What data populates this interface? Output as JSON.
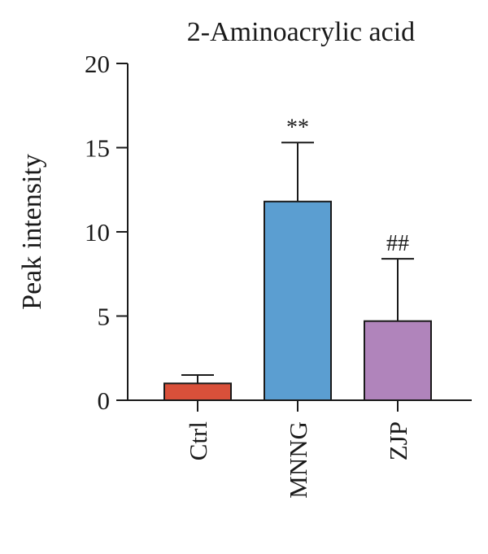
{
  "chart_data": {
    "type": "bar",
    "title": "2-Aminoacrylic acid",
    "xlabel": "",
    "ylabel": "Peak intensity",
    "ylim": [
      0,
      20
    ],
    "yticks": [
      0,
      5,
      10,
      15,
      20
    ],
    "grid": false,
    "categories": [
      "Ctrl",
      "MNNG",
      "ZJP"
    ],
    "values": [
      1.0,
      11.8,
      4.7
    ],
    "error": [
      0.5,
      3.5,
      3.7
    ],
    "annotations": [
      "",
      "**",
      "##"
    ],
    "colors": [
      "#d9503a",
      "#5b9ed1",
      "#b084bb"
    ],
    "edge_color": "#1a1a1a"
  }
}
